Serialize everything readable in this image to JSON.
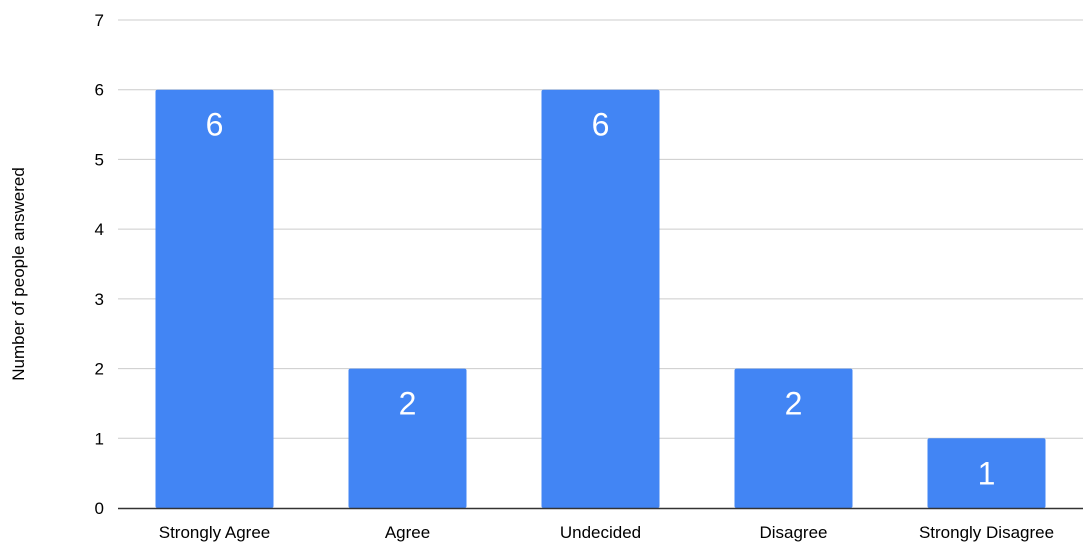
{
  "chart_data": {
    "type": "bar",
    "title": "",
    "xlabel": "",
    "ylabel": "Number of people answered",
    "categories": [
      "Strongly Agree",
      "Agree",
      "Undecided",
      "Disagree",
      "Strongly Disagree"
    ],
    "values": [
      6,
      2,
      6,
      2,
      1
    ],
    "data_labels": [
      "6",
      "2",
      "6",
      "2",
      "1"
    ],
    "ylim": [
      0,
      7
    ],
    "yticks": [
      "0",
      "1",
      "2",
      "3",
      "4",
      "5",
      "6",
      "7"
    ],
    "grid": true,
    "legend": "none",
    "colors": {
      "bar": "#4285f4",
      "grid": "#cccccc",
      "axis": "#333333",
      "data_label": "#ffffff"
    }
  }
}
